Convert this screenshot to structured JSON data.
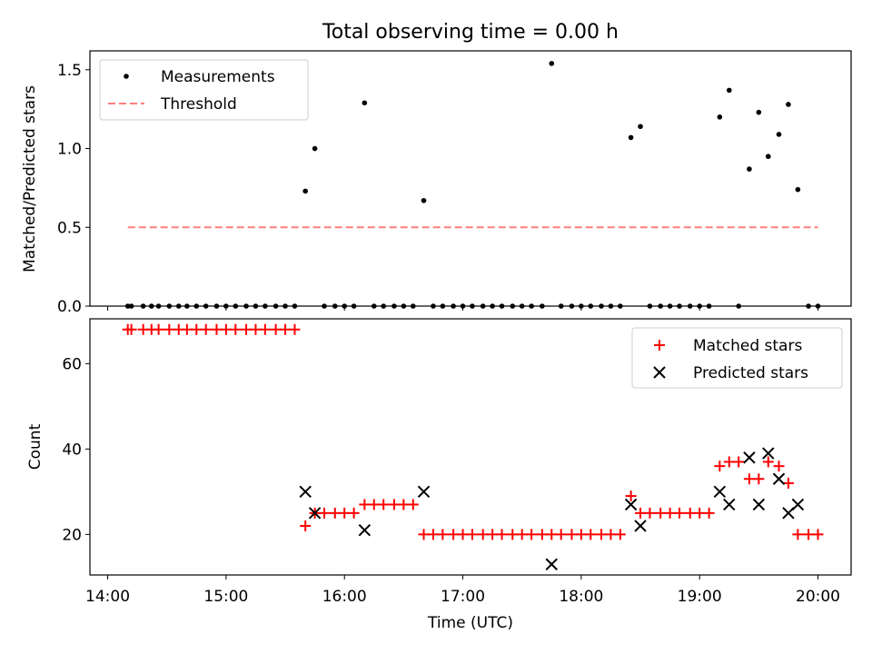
{
  "chart_data": [
    {
      "type": "scatter",
      "title": "Total observing time = 0.00 h",
      "ylabel": "Matched/Predicted stars",
      "xlabel": "",
      "xlim": [
        13.85,
        20.28
      ],
      "ylim": [
        0,
        1.62
      ],
      "yticks": [
        0,
        0.5,
        1.0,
        1.5
      ],
      "ytick_labels": [
        "0.0",
        "0.5",
        "1.0",
        "1.5"
      ],
      "legend": {
        "position": "upper-left",
        "entries": [
          "Measurements",
          "Threshold"
        ]
      },
      "series": [
        {
          "name": "Measurements",
          "color": "#000000",
          "marker": "dot",
          "points": [
            [
              14.17,
              0
            ],
            [
              14.2,
              0
            ],
            [
              14.3,
              0
            ],
            [
              14.37,
              0
            ],
            [
              14.43,
              0
            ],
            [
              14.52,
              0
            ],
            [
              14.6,
              0
            ],
            [
              14.67,
              0
            ],
            [
              14.75,
              0
            ],
            [
              14.83,
              0
            ],
            [
              14.92,
              0
            ],
            [
              15.0,
              0
            ],
            [
              15.08,
              0
            ],
            [
              15.17,
              0
            ],
            [
              15.25,
              0
            ],
            [
              15.33,
              0
            ],
            [
              15.42,
              0
            ],
            [
              15.5,
              0
            ],
            [
              15.58,
              0
            ],
            [
              15.67,
              0.73
            ],
            [
              15.75,
              1.0
            ],
            [
              15.83,
              0
            ],
            [
              15.92,
              0
            ],
            [
              16.0,
              0
            ],
            [
              16.08,
              0
            ],
            [
              16.17,
              1.29
            ],
            [
              16.25,
              0
            ],
            [
              16.33,
              0
            ],
            [
              16.42,
              0
            ],
            [
              16.5,
              0
            ],
            [
              16.58,
              0
            ],
            [
              16.67,
              0.67
            ],
            [
              16.75,
              0
            ],
            [
              16.83,
              0
            ],
            [
              16.92,
              0
            ],
            [
              17.0,
              0
            ],
            [
              17.08,
              0
            ],
            [
              17.17,
              0
            ],
            [
              17.25,
              0
            ],
            [
              17.33,
              0
            ],
            [
              17.42,
              0
            ],
            [
              17.5,
              0
            ],
            [
              17.58,
              0
            ],
            [
              17.67,
              0
            ],
            [
              17.75,
              1.54
            ],
            [
              17.83,
              0
            ],
            [
              17.92,
              0
            ],
            [
              18.0,
              0
            ],
            [
              18.08,
              0
            ],
            [
              18.17,
              0
            ],
            [
              18.25,
              0
            ],
            [
              18.33,
              0
            ],
            [
              18.42,
              1.07
            ],
            [
              18.5,
              1.14
            ],
            [
              18.58,
              0
            ],
            [
              18.67,
              0
            ],
            [
              18.75,
              0
            ],
            [
              18.83,
              0
            ],
            [
              18.92,
              0
            ],
            [
              19.0,
              0
            ],
            [
              19.08,
              0
            ],
            [
              19.17,
              1.2
            ],
            [
              19.25,
              1.37
            ],
            [
              19.33,
              0
            ],
            [
              19.42,
              0.87
            ],
            [
              19.5,
              1.23
            ],
            [
              19.58,
              0.95
            ],
            [
              19.67,
              1.09
            ],
            [
              19.75,
              1.28
            ],
            [
              19.83,
              0.74
            ],
            [
              19.92,
              0
            ],
            [
              20.0,
              0
            ]
          ]
        },
        {
          "name": "Threshold",
          "color": "#ff7f7f",
          "line_style": "dashed",
          "points": [
            [
              14.17,
              0.5
            ],
            [
              20.0,
              0.5
            ]
          ]
        }
      ]
    },
    {
      "type": "scatter",
      "xlabel": "Time (UTC)",
      "ylabel": "Count",
      "xlim": [
        13.85,
        20.28
      ],
      "ylim": [
        10.5,
        70.5
      ],
      "xticks": [
        14,
        15,
        16,
        17,
        18,
        19,
        20
      ],
      "xtick_labels": [
        "14:00",
        "15:00",
        "16:00",
        "17:00",
        "18:00",
        "19:00",
        "20:00"
      ],
      "yticks": [
        20,
        40,
        60
      ],
      "ytick_labels": [
        "20",
        "40",
        "60"
      ],
      "legend": {
        "position": "upper-right",
        "entries": [
          "Matched stars",
          "Predicted stars"
        ]
      },
      "series": [
        {
          "name": "Matched stars",
          "color": "#ff0000",
          "marker": "plus",
          "points": [
            [
              14.17,
              68
            ],
            [
              14.2,
              68
            ],
            [
              14.3,
              68
            ],
            [
              14.37,
              68
            ],
            [
              14.43,
              68
            ],
            [
              14.52,
              68
            ],
            [
              14.6,
              68
            ],
            [
              14.67,
              68
            ],
            [
              14.75,
              68
            ],
            [
              14.83,
              68
            ],
            [
              14.92,
              68
            ],
            [
              15.0,
              68
            ],
            [
              15.08,
              68
            ],
            [
              15.17,
              68
            ],
            [
              15.25,
              68
            ],
            [
              15.33,
              68
            ],
            [
              15.42,
              68
            ],
            [
              15.5,
              68
            ],
            [
              15.58,
              68
            ],
            [
              15.67,
              22
            ],
            [
              15.75,
              25
            ],
            [
              15.83,
              25
            ],
            [
              15.92,
              25
            ],
            [
              16.0,
              25
            ],
            [
              16.08,
              25
            ],
            [
              16.17,
              27
            ],
            [
              16.25,
              27
            ],
            [
              16.33,
              27
            ],
            [
              16.42,
              27
            ],
            [
              16.5,
              27
            ],
            [
              16.58,
              27
            ],
            [
              16.67,
              20
            ],
            [
              16.75,
              20
            ],
            [
              16.83,
              20
            ],
            [
              16.92,
              20
            ],
            [
              17.0,
              20
            ],
            [
              17.08,
              20
            ],
            [
              17.17,
              20
            ],
            [
              17.25,
              20
            ],
            [
              17.33,
              20
            ],
            [
              17.42,
              20
            ],
            [
              17.5,
              20
            ],
            [
              17.58,
              20
            ],
            [
              17.67,
              20
            ],
            [
              17.75,
              20
            ],
            [
              17.83,
              20
            ],
            [
              17.92,
              20
            ],
            [
              18.0,
              20
            ],
            [
              18.08,
              20
            ],
            [
              18.17,
              20
            ],
            [
              18.25,
              20
            ],
            [
              18.33,
              20
            ],
            [
              18.42,
              29
            ],
            [
              18.5,
              25
            ],
            [
              18.58,
              25
            ],
            [
              18.67,
              25
            ],
            [
              18.75,
              25
            ],
            [
              18.83,
              25
            ],
            [
              18.92,
              25
            ],
            [
              19.0,
              25
            ],
            [
              19.08,
              25
            ],
            [
              19.17,
              36
            ],
            [
              19.25,
              37
            ],
            [
              19.33,
              37
            ],
            [
              19.42,
              33
            ],
            [
              19.5,
              33
            ],
            [
              19.58,
              37
            ],
            [
              19.67,
              36
            ],
            [
              19.75,
              32
            ],
            [
              19.83,
              20
            ],
            [
              19.92,
              20
            ],
            [
              20.0,
              20
            ]
          ]
        },
        {
          "name": "Predicted stars",
          "color": "#000000",
          "marker": "x",
          "points": [
            [
              15.67,
              30
            ],
            [
              15.75,
              25
            ],
            [
              16.17,
              21
            ],
            [
              16.67,
              30
            ],
            [
              17.75,
              13
            ],
            [
              18.42,
              27
            ],
            [
              18.5,
              22
            ],
            [
              19.17,
              30
            ],
            [
              19.25,
              27
            ],
            [
              19.42,
              38
            ],
            [
              19.5,
              27
            ],
            [
              19.58,
              39
            ],
            [
              19.67,
              33
            ],
            [
              19.75,
              25
            ],
            [
              19.83,
              27
            ]
          ]
        }
      ]
    }
  ]
}
